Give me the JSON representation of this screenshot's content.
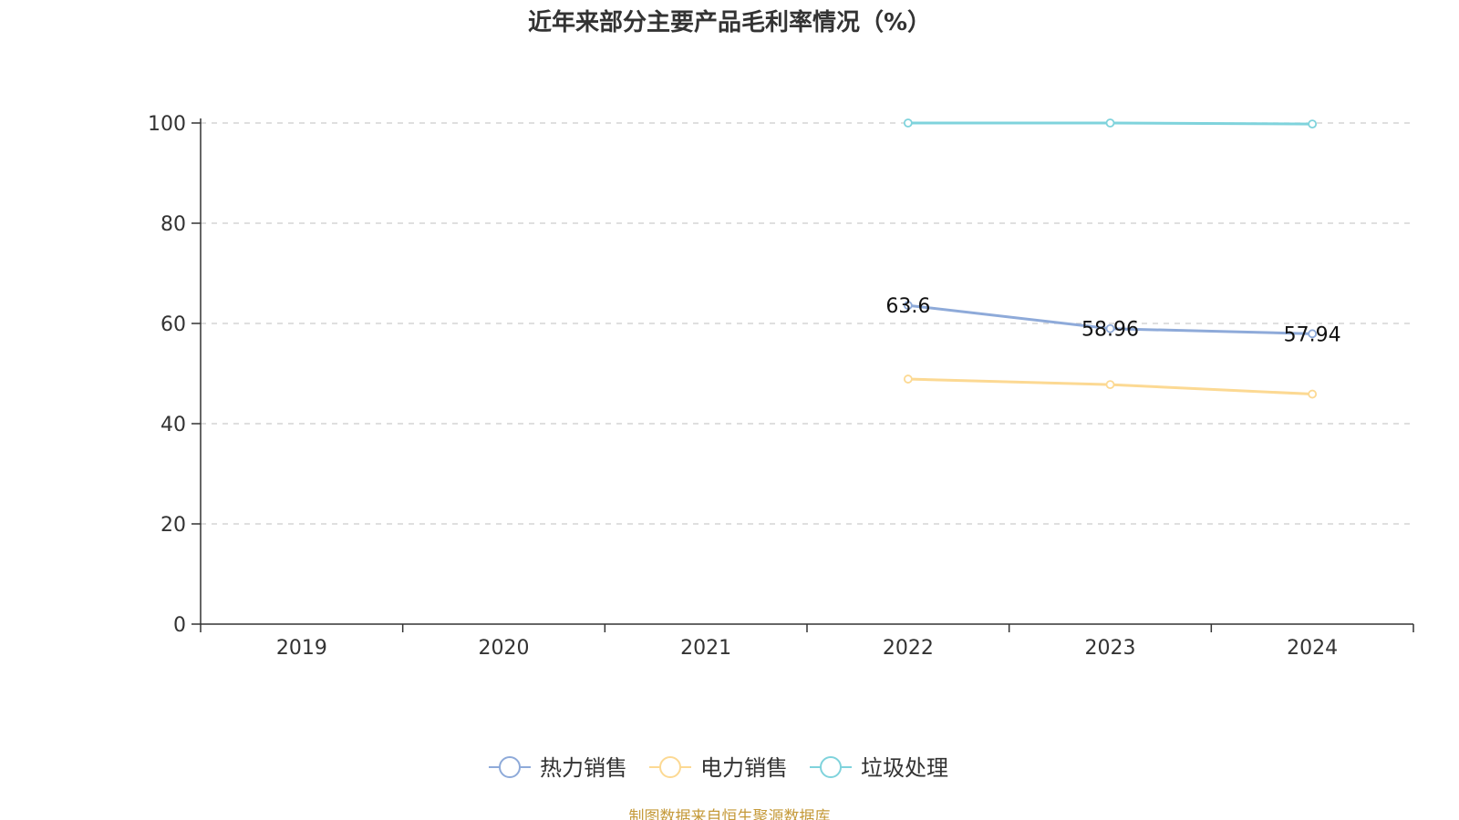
{
  "chart_data": {
    "type": "line",
    "title": "近年来部分主要产品毛利率情况（%）",
    "categories": [
      "2019",
      "2020",
      "2021",
      "2022",
      "2023",
      "2024"
    ],
    "ylim": [
      0,
      100
    ],
    "yticks": [
      0,
      20,
      40,
      60,
      80,
      100
    ],
    "grid": true,
    "legend_position": "bottom",
    "series": [
      {
        "name": "热力销售",
        "color": "#8eaad9",
        "values": [
          null,
          null,
          null,
          63.6,
          58.96,
          57.94
        ],
        "labels": [
          "",
          "",
          "",
          "63.6",
          "58.96",
          "57.94"
        ]
      },
      {
        "name": "电力销售",
        "color": "#fcd993",
        "values": [
          null,
          null,
          null,
          48.9,
          47.8,
          45.9
        ],
        "labels": [
          "",
          "",
          "",
          "",
          "",
          ""
        ]
      },
      {
        "name": "垃圾处理",
        "color": "#7fd3dc",
        "values": [
          null,
          null,
          null,
          100.0,
          100.0,
          99.8
        ],
        "labels": [
          "",
          "",
          "",
          "",
          "",
          ""
        ]
      }
    ]
  },
  "source_note": "制图数据来自恒生聚源数据库"
}
